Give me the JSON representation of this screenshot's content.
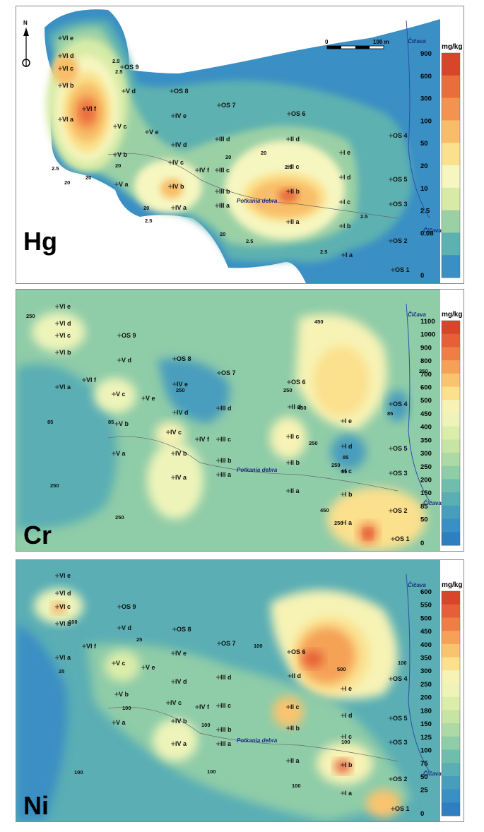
{
  "panels": [
    {
      "element": "Hg",
      "unit": "mg/kg",
      "legend": [
        {
          "label": "900",
          "color": "#d9452b"
        },
        {
          "label": "600",
          "color": "#ea6d3c"
        },
        {
          "label": "300",
          "color": "#f2944f"
        },
        {
          "label": "100",
          "color": "#f8bd68"
        },
        {
          "label": "50",
          "color": "#fbe08d"
        },
        {
          "label": "20",
          "color": "#f6f6c0"
        },
        {
          "label": "10",
          "color": "#d7eba7"
        },
        {
          "label": "2.5",
          "color": "#9bd0a5"
        },
        {
          "label": "0.08",
          "color": "#5db1b0"
        },
        {
          "label": "0",
          "color": "#3a8fc4"
        }
      ],
      "contours": [
        "2.5",
        "20",
        "2.5",
        "2.5",
        "20",
        "20",
        "2.5",
        "20",
        "20",
        "2.5",
        "20",
        "2.5",
        "2.5",
        "2.5",
        "20"
      ],
      "river": "Potkania debra",
      "stream": "Čičava",
      "scalebar": {
        "start": "0",
        "end": "100 m"
      },
      "north": "N",
      "samples": [
        "VI e",
        "VI d",
        "VI c",
        "VI b",
        "VI a",
        "VI f",
        "V d",
        "V e",
        "V c",
        "V b",
        "V a",
        "IV e",
        "IV d",
        "IV c",
        "IV b",
        "IV a",
        "IV f",
        "III d",
        "III c",
        "III b",
        "III a",
        "II d",
        "II c",
        "II b",
        "II a",
        "I e",
        "I d",
        "I c",
        "I b",
        "I a",
        "OS 1",
        "OS 2",
        "OS 3",
        "OS 4",
        "OS 5",
        "OS 6",
        "OS 7",
        "OS 8",
        "OS 9"
      ]
    },
    {
      "element": "Cr",
      "unit": "mg/kg",
      "legend": [
        {
          "label": "1100",
          "color": "#d9452b"
        },
        {
          "label": "1000",
          "color": "#e65f38"
        },
        {
          "label": "900",
          "color": "#ef7e46"
        },
        {
          "label": "800",
          "color": "#f5a157"
        },
        {
          "label": "700",
          "color": "#f9c46e"
        },
        {
          "label": "600",
          "color": "#fbe08d"
        },
        {
          "label": "500",
          "color": "#f7f3b5"
        },
        {
          "label": "450",
          "color": "#eef4b9"
        },
        {
          "label": "400",
          "color": "#dcedaa"
        },
        {
          "label": "350",
          "color": "#c6e4a4"
        },
        {
          "label": "300",
          "color": "#add9a4"
        },
        {
          "label": "250",
          "color": "#8fcca8"
        },
        {
          "label": "200",
          "color": "#71bdad"
        },
        {
          "label": "150",
          "color": "#5aaeb4"
        },
        {
          "label": "85",
          "color": "#489dbd"
        },
        {
          "label": "50",
          "color": "#3a8fc4"
        },
        {
          "label": "0",
          "color": "#2f7fc0"
        }
      ],
      "contours": [
        "250",
        "85",
        "85",
        "250",
        "250",
        "250",
        "450",
        "250",
        "250",
        "450",
        "250",
        "85",
        "85",
        "450",
        "250",
        "85",
        "250"
      ],
      "river": "Potkania debra",
      "stream": "Čičava",
      "samples": [
        "VI e",
        "VI d",
        "VI c",
        "VI b",
        "VI a",
        "VI f",
        "V d",
        "V e",
        "V c",
        "V b",
        "V a",
        "IV e",
        "IV d",
        "IV c",
        "IV b",
        "IV a",
        "IV f",
        "III d",
        "III c",
        "III b",
        "III a",
        "II d",
        "II c",
        "II b",
        "II a",
        "I e",
        "I d",
        "I c",
        "I b",
        "I a",
        "OS 1",
        "OS 2",
        "OS 3",
        "OS 4",
        "OS 5",
        "OS 6",
        "OS 7",
        "OS 8",
        "OS 9"
      ]
    },
    {
      "element": "Ni",
      "unit": "mg/kg",
      "legend": [
        {
          "label": "600",
          "color": "#d9452b"
        },
        {
          "label": "550",
          "color": "#e65f38"
        },
        {
          "label": "500",
          "color": "#ef7e46"
        },
        {
          "label": "450",
          "color": "#f5a157"
        },
        {
          "label": "400",
          "color": "#f9c46e"
        },
        {
          "label": "350",
          "color": "#fbe08d"
        },
        {
          "label": "300",
          "color": "#f7f3b5"
        },
        {
          "label": "250",
          "color": "#eef4b9"
        },
        {
          "label": "200",
          "color": "#dcedaa"
        },
        {
          "label": "180",
          "color": "#c6e4a4"
        },
        {
          "label": "150",
          "color": "#add9a4"
        },
        {
          "label": "125",
          "color": "#8fcca8"
        },
        {
          "label": "100",
          "color": "#71bdad"
        },
        {
          "label": "75",
          "color": "#5aaeb4"
        },
        {
          "label": "50",
          "color": "#489dbd"
        },
        {
          "label": "25",
          "color": "#3a8fc4"
        },
        {
          "label": "0",
          "color": "#2f7fc0"
        }
      ],
      "contours": [
        "100",
        "25",
        "100",
        "100",
        "100",
        "100",
        "100",
        "500",
        "100",
        "100",
        "100",
        "25"
      ],
      "river": "Potkania debra",
      "stream": "Čičava",
      "samples": [
        "VI e",
        "VI d",
        "VI c",
        "VI b",
        "VI a",
        "VI f",
        "V d",
        "V e",
        "V c",
        "V b",
        "V a",
        "IV e",
        "IV d",
        "IV c",
        "IV b",
        "IV a",
        "IV f",
        "III d",
        "III c",
        "III b",
        "III a",
        "II d",
        "II c",
        "II b",
        "II a",
        "I e",
        "I d",
        "I c",
        "I b",
        "I a",
        "OS 1",
        "OS 2",
        "OS 3",
        "OS 4",
        "OS 5",
        "OS 6",
        "OS 7",
        "OS 8",
        "OS 9"
      ]
    }
  ]
}
